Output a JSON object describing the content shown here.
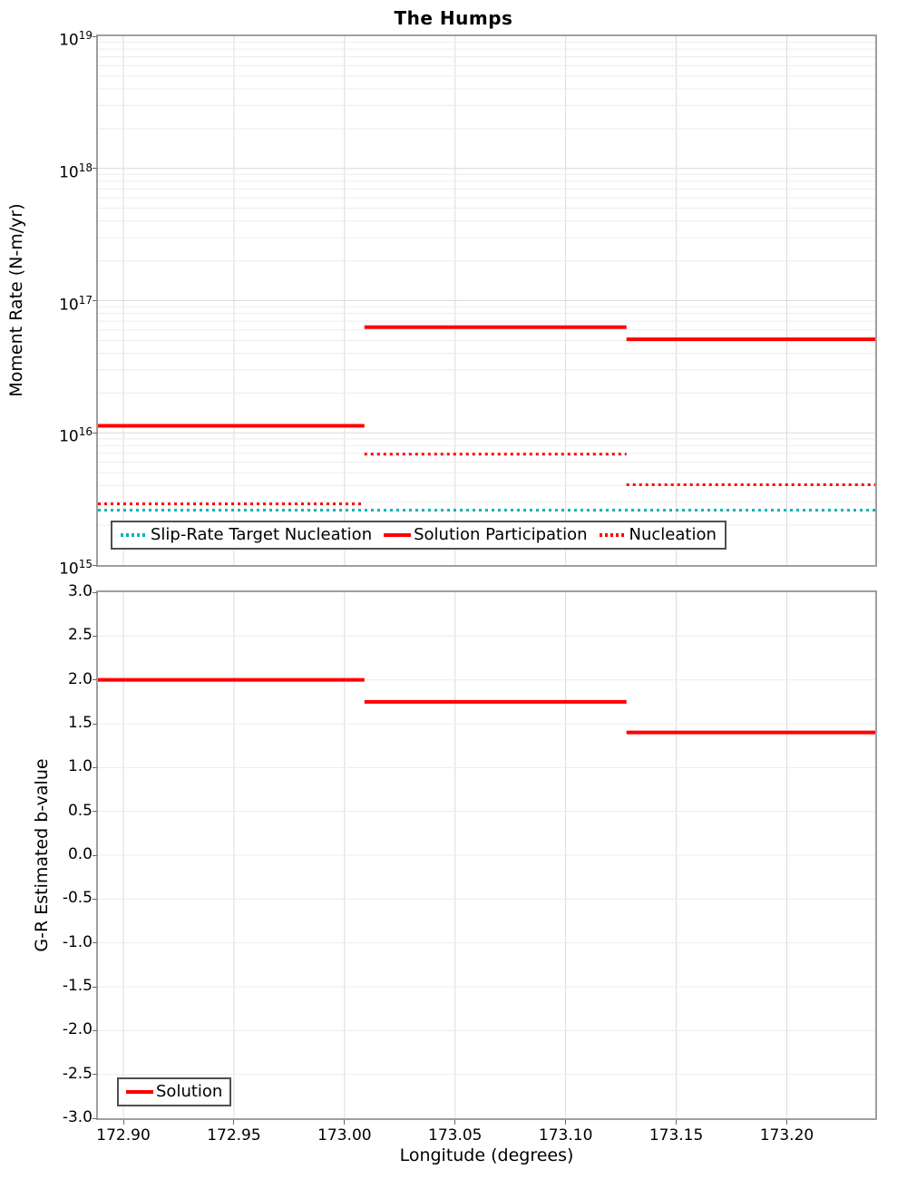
{
  "title": "The Humps",
  "xlabel": "Longitude (degrees)",
  "colors": {
    "solution_red": "#ff0000",
    "target_teal": "#00b5b8",
    "grid_minor": "#ececec",
    "grid_major": "#dcdcdc",
    "frame_gray": "#9f9f9f"
  },
  "chart_data": [
    {
      "type": "line",
      "panel": "top",
      "ylabel": "Moment Rate (N-m/yr)",
      "yscale": "log",
      "ylim": [
        1000000000000000.0,
        1e+19
      ],
      "xlim": [
        172.8885,
        173.24
      ],
      "show_xlabels": false,
      "xticks": [
        {
          "label": "172.90",
          "value": 172.9
        },
        {
          "label": "172.95",
          "value": 172.95
        },
        {
          "label": "173.00",
          "value": 173.0
        },
        {
          "label": "173.05",
          "value": 173.05
        },
        {
          "label": "173.10",
          "value": 173.1
        },
        {
          "label": "173.15",
          "value": 173.15
        },
        {
          "label": "173.20",
          "value": 173.2
        }
      ],
      "yticks": [
        {
          "base": "10",
          "exp": "19",
          "value": 1e+19
        },
        {
          "base": "10",
          "exp": "18",
          "value": 1e+18
        },
        {
          "base": "10",
          "exp": "17",
          "value": 1e+17
        },
        {
          "base": "10",
          "exp": "16",
          "value": 1e+16
        },
        {
          "base": "10",
          "exp": "15",
          "value": 1000000000000000.0
        }
      ],
      "series": [
        {
          "name": "Slip-Rate Target Nucleation",
          "color": "#00b5b8",
          "style": "dotted",
          "segments": [
            {
              "x0": 172.8885,
              "x1": 173.24,
              "y": 2600000000000000.0
            }
          ]
        },
        {
          "name": "Solution Participation",
          "color": "#ff0000",
          "style": "solid",
          "segments": [
            {
              "x0": 172.8885,
              "x1": 173.009,
              "y": 1.13e+16
            },
            {
              "x0": 173.009,
              "x1": 173.1275,
              "y": 6.3e+16
            },
            {
              "x0": 173.1275,
              "x1": 173.24,
              "y": 5.1e+16
            }
          ]
        },
        {
          "name": "Nucleation",
          "color": "#ff0000",
          "style": "dotted",
          "segments": [
            {
              "x0": 172.8885,
              "x1": 173.009,
              "y": 2900000000000000.0
            },
            {
              "x0": 173.009,
              "x1": 173.1275,
              "y": 6900000000000000.0
            },
            {
              "x0": 173.1275,
              "x1": 173.24,
              "y": 4050000000000000.0
            }
          ]
        }
      ]
    },
    {
      "type": "line",
      "panel": "bottom",
      "ylabel": "G-R Estimated b-value",
      "yscale": "linear",
      "ylim": [
        -3.0,
        3.0
      ],
      "ygrid_step": 0.5,
      "xlim": [
        172.8885,
        173.24
      ],
      "show_xlabels": true,
      "xticks": [
        {
          "label": "172.90",
          "value": 172.9
        },
        {
          "label": "172.95",
          "value": 172.95
        },
        {
          "label": "173.00",
          "value": 173.0
        },
        {
          "label": "173.05",
          "value": 173.05
        },
        {
          "label": "173.10",
          "value": 173.1
        },
        {
          "label": "173.15",
          "value": 173.15
        },
        {
          "label": "173.20",
          "value": 173.2
        }
      ],
      "yticks": [
        {
          "label": "3.0",
          "value": 3.0
        },
        {
          "label": "2.5",
          "value": 2.5
        },
        {
          "label": "2.0",
          "value": 2.0
        },
        {
          "label": "1.5",
          "value": 1.5
        },
        {
          "label": "1.0",
          "value": 1.0
        },
        {
          "label": "0.5",
          "value": 0.5
        },
        {
          "label": "0.0",
          "value": 0.0
        },
        {
          "label": "-0.5",
          "value": -0.5
        },
        {
          "label": "-1.0",
          "value": -1.0
        },
        {
          "label": "-1.5",
          "value": -1.5
        },
        {
          "label": "-2.0",
          "value": -2.0
        },
        {
          "label": "-2.5",
          "value": -2.5
        },
        {
          "label": "-3.0",
          "value": -3.0
        }
      ],
      "series": [
        {
          "name": "Solution",
          "color": "#ff0000",
          "style": "solid",
          "segments": [
            {
              "x0": 172.8885,
              "x1": 173.009,
              "y": 2.0
            },
            {
              "x0": 173.009,
              "x1": 173.1275,
              "y": 1.75
            },
            {
              "x0": 173.1275,
              "x1": 173.24,
              "y": 1.4
            }
          ]
        }
      ]
    }
  ]
}
